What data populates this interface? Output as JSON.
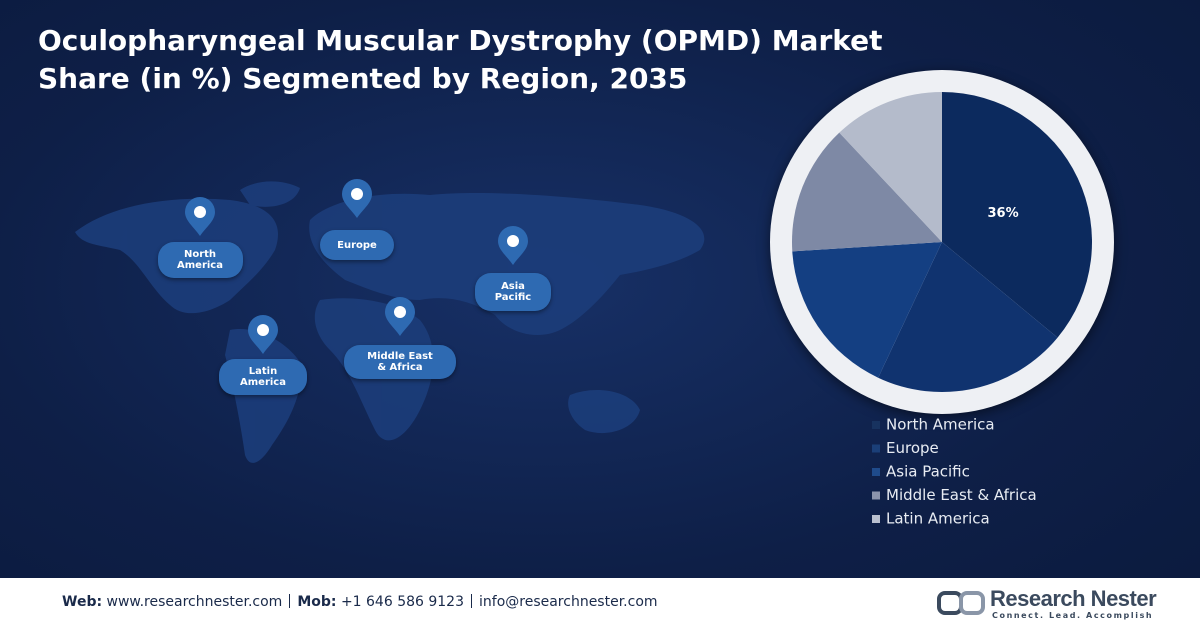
{
  "chart_data": {
    "type": "pie",
    "title": [
      "Oculopharyngeal Muscular Dystrophy (OPMD) Market",
      "Share (in %) Segmented by Region, 2035"
    ],
    "categories": [
      "North America",
      "Europe",
      "Asia Pacific",
      "Middle East & Africa",
      "Latin America"
    ],
    "values": [
      36,
      21,
      17,
      14,
      12
    ],
    "value_labels": [
      "36%",
      null,
      null,
      null,
      null
    ],
    "colors": [
      "#0c2a5e",
      "#10336f",
      "#143f82",
      "#7e89a5",
      "#b4bbcb"
    ],
    "legend_colors": [
      "#17325f",
      "#1b3f78",
      "#1f4b8b",
      "#8b94ac",
      "#b9c0cf"
    ],
    "legend": "bottom"
  },
  "map": {
    "labels": [
      "North America",
      "Europe",
      "Asia Pacific",
      "Latin America",
      "Middle East & Africa"
    ]
  },
  "footer": {
    "items": [
      {
        "label": "Web:",
        "text": "www.researchnester.com"
      },
      {
        "label": "Mob:",
        "text": "+1 646 586 9123"
      },
      {
        "label": null,
        "text": "info@researchnester.com"
      }
    ],
    "brand": "Research Nester",
    "tagline": "Connect. Lead. Accomplish"
  }
}
